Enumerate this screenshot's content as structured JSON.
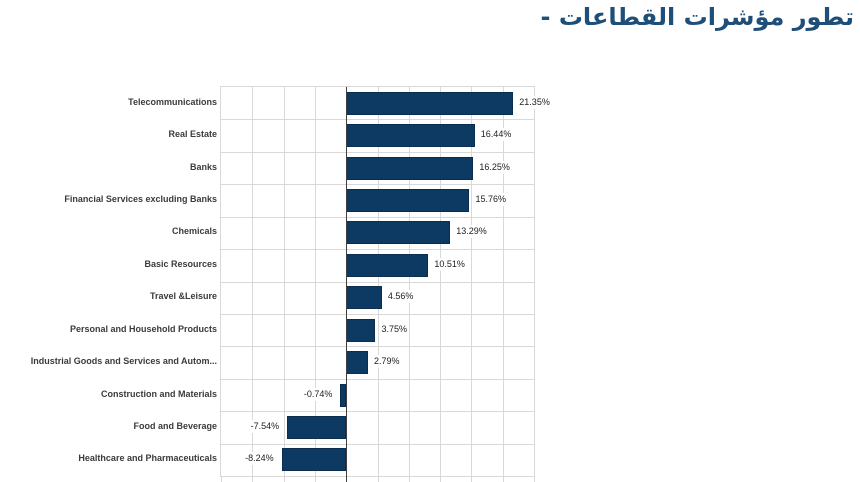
{
  "title": {
    "text": "تطور مؤشرات القطاعات -",
    "color": "#1f4e79"
  },
  "chart_data": {
    "type": "bar",
    "orientation": "horizontal",
    "title": "تطور مؤشرات القطاعات -",
    "categories": [
      "Telecommunications",
      "Real Estate",
      "Banks",
      "Financial Services excluding Banks",
      "Chemicals",
      "Basic Resources",
      "Travel &Leisure",
      "Personal and Household Products",
      "Industrial Goods and Services and Autom...",
      "Construction and Materials",
      "Food and Beverage",
      "Healthcare and Pharmaceuticals"
    ],
    "values": [
      21.35,
      16.44,
      16.25,
      15.76,
      13.29,
      10.51,
      4.56,
      3.75,
      2.79,
      -0.74,
      -7.54,
      -8.24
    ],
    "value_labels": [
      "21.35%",
      "16.44%",
      "16.25%",
      "15.76%",
      "13.29%",
      "10.51%",
      "4.56%",
      "3.75%",
      "2.79%",
      "-0.74%",
      "-7.54%",
      "-8.24%"
    ],
    "xlabel": "",
    "ylabel": "",
    "xlim": [
      -16,
      24
    ],
    "grid_step_percent": 4,
    "grid": true,
    "legend": "none",
    "x_tick_labels_visible": false,
    "colors": {
      "bar_fill": "#0d3a63",
      "bar_border": "#0a2e50",
      "gridline": "#d9d9d9",
      "zero_line": "#404040",
      "category_label": "#3b3b3b",
      "value_label": "#212121"
    }
  }
}
